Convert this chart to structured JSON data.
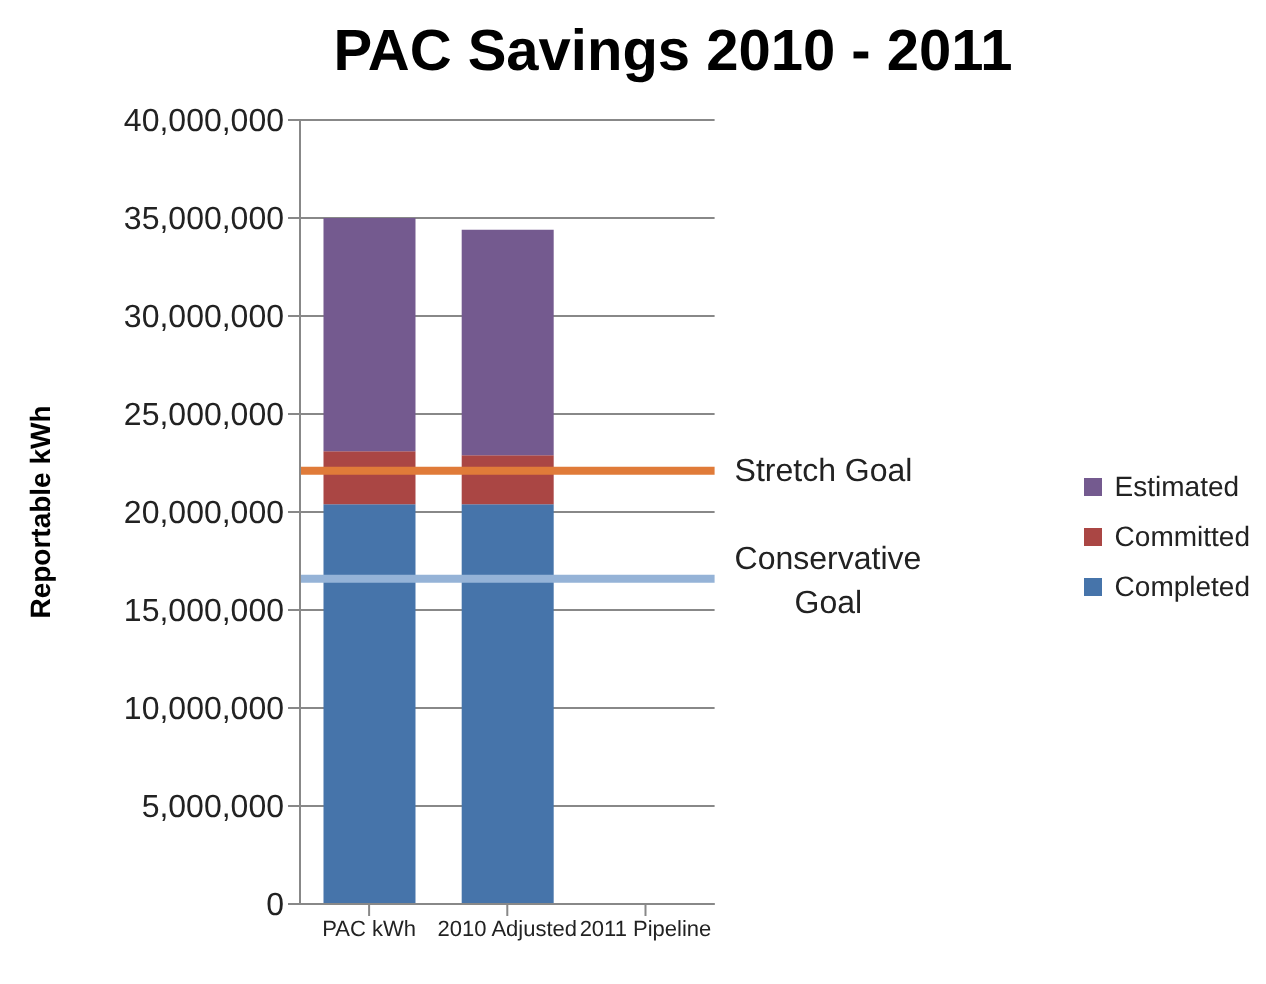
{
  "chart_data": {
    "type": "bar",
    "title": "PAC Savings 2010 - 2011",
    "ylabel": "Reportable kWh",
    "categories": [
      "PAC kWh",
      "2010 Adjusted",
      "2011 Pipeline"
    ],
    "stacked": true,
    "series": [
      {
        "name": "Completed",
        "color": "#4674aa",
        "values": [
          20400000,
          20400000,
          null
        ]
      },
      {
        "name": "Committed",
        "color": "#aa4644",
        "values": [
          2700000,
          2500000,
          null
        ]
      },
      {
        "name": "Estimated",
        "color": "#745a8f",
        "values": [
          11900000,
          11500000,
          null
        ]
      }
    ],
    "ylim": [
      0,
      40000000
    ],
    "yticks": [
      0,
      {
        "value": 5000000,
        "label": "5,000,000"
      },
      {
        "value": 10000000,
        "label": "10,000,000"
      },
      {
        "value": 15000000,
        "label": "15,000,000"
      },
      {
        "value": 20000000,
        "label": "20,000,000"
      },
      {
        "value": 25000000,
        "label": "25,000,000"
      },
      {
        "value": 30000000,
        "label": "30,000,000"
      },
      {
        "value": 35000000,
        "label": "35,000,000"
      },
      {
        "value": 40000000,
        "label": "40,000,000"
      }
    ],
    "grid": "y",
    "legend": "right",
    "ref_lines": [
      {
        "axis": "y",
        "value": 22100000,
        "label": "Stretch Goal",
        "color": "#e07b39"
      },
      {
        "axis": "y",
        "value": 16600000,
        "label": "Conservative Goal",
        "color": "#95b3d7"
      }
    ]
  }
}
